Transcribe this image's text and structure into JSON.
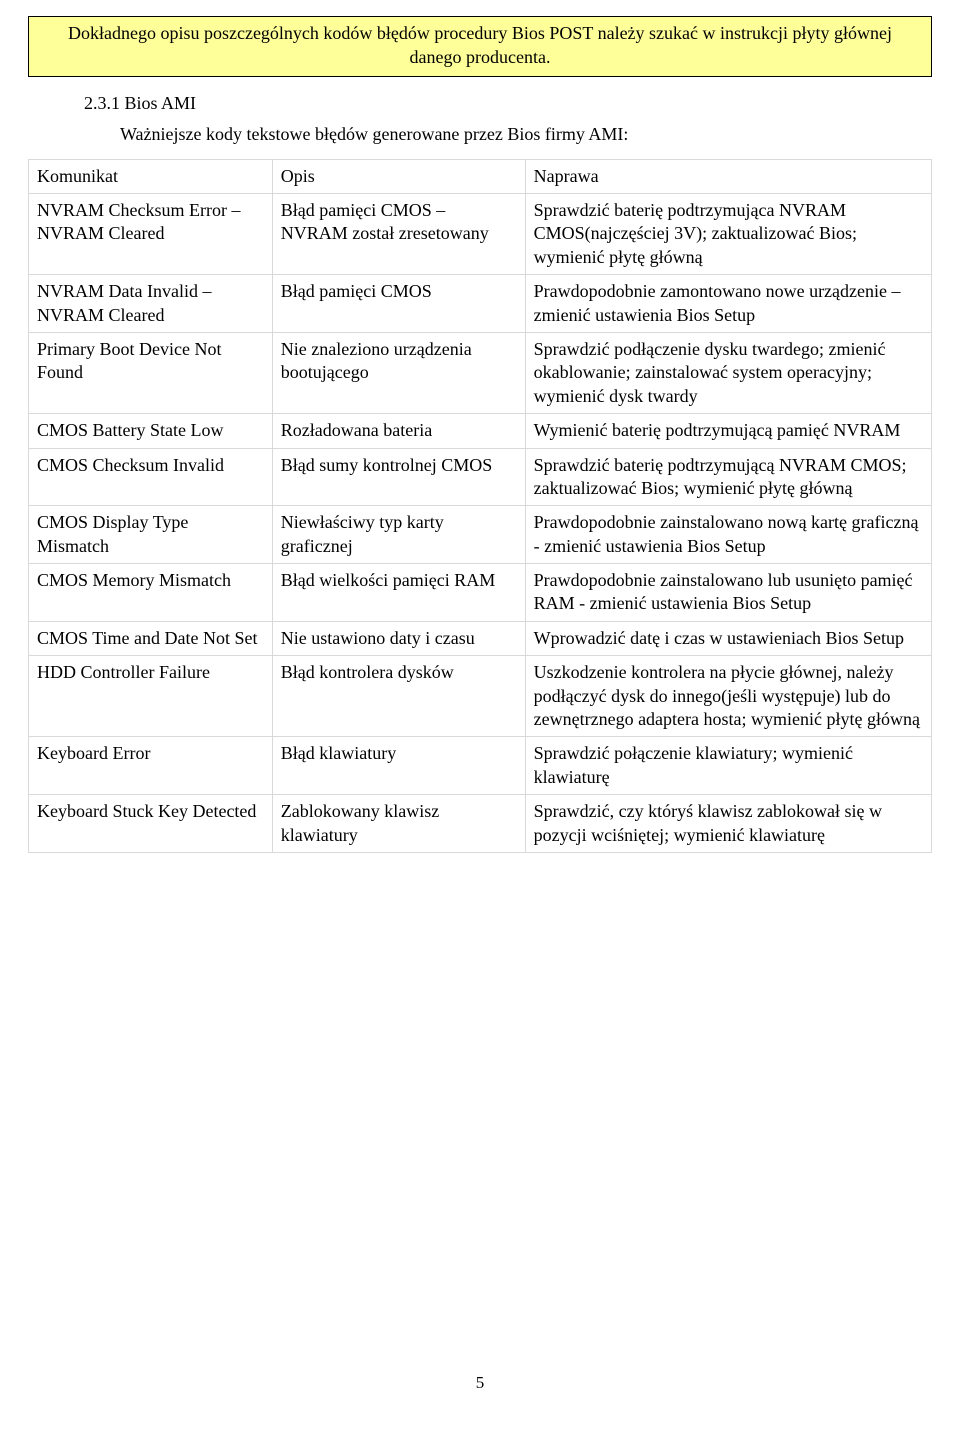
{
  "notice": "Dokładnego opisu poszczególnych kodów błędów procedury Bios POST należy szukać w instrukcji płyty głównej danego producenta.",
  "section_heading": "2.3.1 Bios AMI",
  "intro": "Ważniejsze kody tekstowe błędów generowane przez Bios firmy AMI:",
  "table": {
    "columns": [
      "Komunikat",
      "Opis",
      "Naprawa"
    ],
    "rows": [
      [
        "NVRAM Checksum Error – NVRAM Cleared",
        "Błąd pamięci CMOS – NVRAM został zresetowany",
        "Sprawdzić baterię podtrzymująca NVRAM CMOS(najczęściej 3V); zaktualizować Bios; wymienić płytę główną"
      ],
      [
        "NVRAM Data Invalid – NVRAM Cleared",
        "Błąd pamięci CMOS",
        "Prawdopodobnie zamontowano nowe urządzenie – zmienić ustawienia Bios Setup"
      ],
      [
        "Primary Boot Device Not Found",
        "Nie znaleziono urządzenia bootującego",
        "Sprawdzić podłączenie dysku twardego; zmienić okablowanie; zainstalować system operacyjny; wymienić dysk twardy"
      ],
      [
        "CMOS Battery State Low",
        "Rozładowana bateria",
        "Wymienić baterię podtrzymującą pamięć NVRAM"
      ],
      [
        "CMOS Checksum Invalid",
        "Błąd sumy kontrolnej CMOS",
        "Sprawdzić baterię podtrzymującą NVRAM CMOS; zaktualizować Bios; wymienić płytę główną"
      ],
      [
        "CMOS Display Type Mismatch",
        "Niewłaściwy typ karty graficznej",
        "Prawdopodobnie zainstalowano nową kartę graficzną - zmienić ustawienia Bios Setup"
      ],
      [
        "CMOS Memory Mismatch",
        "Błąd wielkości pamięci RAM",
        "Prawdopodobnie zainstalowano lub usunięto pamięć RAM - zmienić ustawienia Bios Setup"
      ],
      [
        "CMOS Time and Date Not Set",
        "Nie ustawiono daty i czasu",
        "Wprowadzić datę i czas w ustawieniach Bios Setup"
      ],
      [
        "HDD Controller Failure",
        "Błąd kontrolera dysków",
        "Uszkodzenie kontrolera na płycie głównej, należy podłączyć dysk do innego(jeśli występuje) lub do zewnętrznego adaptera hosta; wymienić płytę główną"
      ],
      [
        "Keyboard Error",
        "Błąd klawiatury",
        "Sprawdzić połączenie klawiatury; wymienić klawiaturę"
      ],
      [
        "Keyboard Stuck Key Detected",
        "Zablokowany klawisz klawiatury",
        "Sprawdzić, czy któryś klawisz zablokował się w pozycji wciśniętej; wymienić klawiaturę"
      ]
    ]
  },
  "page_number": "5",
  "colors": {
    "notice_bg": "#ffff99",
    "notice_border": "#000000",
    "table_border": "#d9d9d9",
    "page_bg": "#ffffff",
    "text": "#000000"
  },
  "typography": {
    "font_family": "Times New Roman",
    "body_fontsize_pt": 13,
    "heading_fontsize_pt": 13
  }
}
